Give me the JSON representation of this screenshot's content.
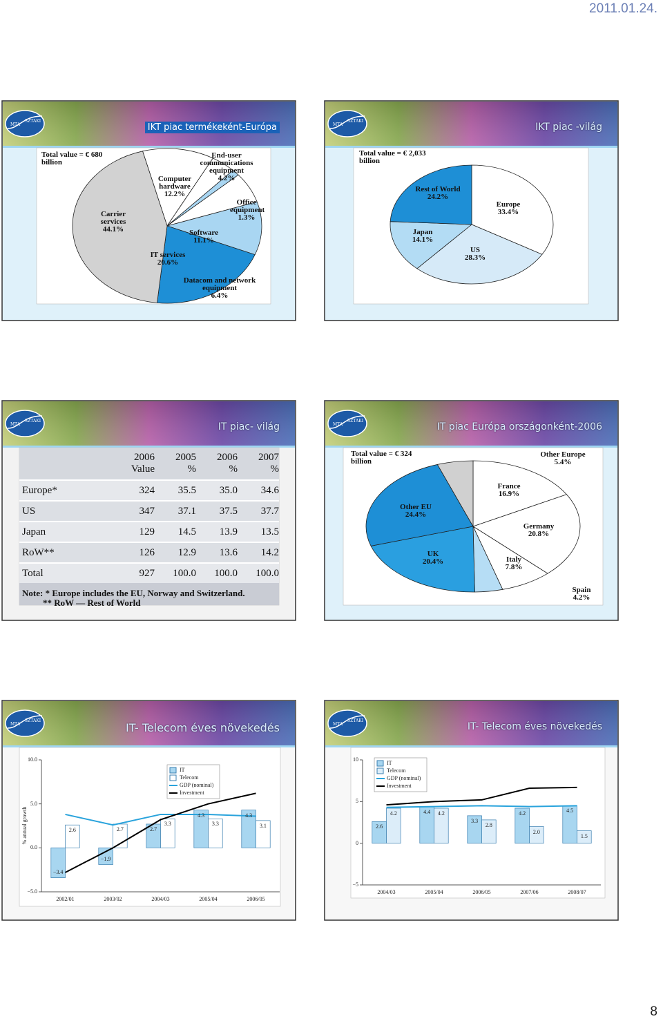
{
  "date": "2011.01.24.",
  "page_number": "8",
  "logo": {
    "left": "MTA",
    "right": "SZTAKI"
  },
  "slides": [
    {
      "title": "IKT piac termékeként-Európa",
      "chart_data": {
        "type": "pie",
        "title": "Total value = € 680 billion",
        "categories": [
          "Computer hardware",
          "End-user communications equipment",
          "Office equipment",
          "Datacom and network equipment",
          "Software",
          "IT services",
          "Carrier services"
        ],
        "values": [
          12.2,
          4.2,
          1.3,
          6.4,
          11.1,
          20.6,
          44.1
        ],
        "value_labels": [
          "12.2%",
          "4.2%",
          "1.3%",
          "6.4%",
          "11.1%",
          "20.6%",
          "44.1%"
        ],
        "colors": [
          "#ffffff",
          "#ffffff",
          "#a9d6f2",
          "#ffffff",
          "#a9d6f2",
          "#1e8fd6",
          "#d2d2d2"
        ]
      }
    },
    {
      "title": "IKT piac -világ",
      "chart_data": {
        "type": "pie",
        "title": "Total value = € 2,033 billion",
        "categories": [
          "Europe",
          "US",
          "Japan",
          "Rest of World"
        ],
        "values": [
          33.4,
          28.3,
          14.1,
          24.2
        ],
        "value_labels": [
          "33.4%",
          "28.3%",
          "14.1%",
          "24.2%"
        ],
        "colors": [
          "#ffffff",
          "#d6eaf8",
          "#b3dcf4",
          "#1e8fd6"
        ]
      }
    },
    {
      "title": "IT piac- világ",
      "table": {
        "columns": [
          [
            "2006",
            "Value"
          ],
          [
            "2005",
            "%"
          ],
          [
            "2006",
            "%"
          ],
          [
            "2007",
            "%"
          ]
        ],
        "rows": [
          [
            "Europe*",
            "324",
            "35.5",
            "35.0",
            "34.6"
          ],
          [
            "US",
            "347",
            "37.1",
            "37.5",
            "37.7"
          ],
          [
            "Japan",
            "129",
            "14.5",
            "13.9",
            "13.5"
          ],
          [
            "RoW**",
            "126",
            "12.9",
            "13.6",
            "14.2"
          ],
          [
            "Total",
            "927",
            "100.0",
            "100.0",
            "100.0"
          ]
        ],
        "notes": [
          "Note: *  Europe includes the EU, Norway and Switzerland.",
          "** RoW — Rest of World"
        ]
      }
    },
    {
      "title": "IT piac Európa országonként-2006",
      "chart_data": {
        "type": "pie",
        "title": "Total value = € 324 billion",
        "categories": [
          "France",
          "Germany",
          "Italy",
          "Spain",
          "UK",
          "Other EU",
          "Other Europe"
        ],
        "values": [
          16.9,
          20.8,
          7.8,
          4.2,
          20.4,
          24.4,
          5.4
        ],
        "value_labels": [
          "16.9%",
          "20.8%",
          "7.8%",
          "4.2%",
          "20.4%",
          "24.4%",
          "5.4%"
        ],
        "colors": [
          "#ffffff",
          "#ffffff",
          "#ffffff",
          "#b6ddf5",
          "#2a9fe0",
          "#1e8fd6",
          "#d0d0d0"
        ]
      }
    },
    {
      "title": "IT- Telecom éves növekedés",
      "chart_data": {
        "type": "bar",
        "ylabel": "% annual growth",
        "categories": [
          "2002/01",
          "2003/02",
          "2004/03",
          "2005/04",
          "2006/05"
        ],
        "ylim": [
          -5,
          10
        ],
        "yticks": [
          {
            "value": -5,
            "label": "−5.0"
          },
          {
            "value": 0,
            "label": "0.0"
          },
          {
            "value": 5,
            "label": "5.0"
          },
          {
            "value": 10,
            "label": "10.0"
          }
        ],
        "series": [
          {
            "name": "IT",
            "color": "#a8d6f0",
            "values": [
              -3.4,
              -1.9,
              2.7,
              4.3,
              4.3
            ],
            "value_labels": [
              "−3.4",
              "−1.9",
              "2.7",
              "4.3",
              "4.3"
            ]
          },
          {
            "name": "Telecom",
            "color": "#ffffff",
            "values": [
              2.6,
              2.7,
              3.3,
              3.3,
              3.1
            ],
            "value_labels": [
              "2.6",
              "2.7",
              "3.3",
              "3.3",
              "3.1"
            ]
          },
          {
            "name": "GDP (nominal)",
            "type": "line",
            "color": "#29a3dc",
            "values": [
              3.8,
              2.6,
              3.8,
              3.8,
              3.6
            ]
          },
          {
            "name": "Investment",
            "type": "line",
            "color": "#000000",
            "values": [
              -2.8,
              0.0,
              3.2,
              5.0,
              6.2
            ]
          }
        ]
      }
    },
    {
      "title": "IT- Telecom éves növekedés",
      "chart_data": {
        "type": "bar",
        "categories": [
          "2004/03",
          "2005/04",
          "2006/05",
          "2007/06",
          "2008/07"
        ],
        "ylim": [
          -5,
          10
        ],
        "yticks": [
          {
            "value": -5,
            "label": "−5"
          },
          0,
          5,
          10
        ],
        "series": [
          {
            "name": "IT",
            "color": "#a8d6f0",
            "values": [
              2.6,
              4.4,
              3.3,
              4.2,
              4.5
            ],
            "value_labels": [
              "2.6",
              "4.4",
              "3.3",
              "4.2",
              "4.5"
            ]
          },
          {
            "name": "Telecom",
            "color": "#dcedf9",
            "values": [
              4.2,
              4.2,
              2.8,
              2.0,
              1.5
            ],
            "value_labels": [
              "4.2",
              "4.2",
              "2.8",
              "2.0",
              "1.5"
            ]
          },
          {
            "name": "GDP (nominal)",
            "type": "line",
            "color": "#29a3dc",
            "values": [
              4.3,
              4.4,
              4.5,
              4.4,
              4.5
            ]
          },
          {
            "name": "Investment",
            "type": "line",
            "color": "#000000",
            "values": [
              4.6,
              5.0,
              5.2,
              6.6,
              6.7
            ]
          }
        ]
      }
    }
  ]
}
